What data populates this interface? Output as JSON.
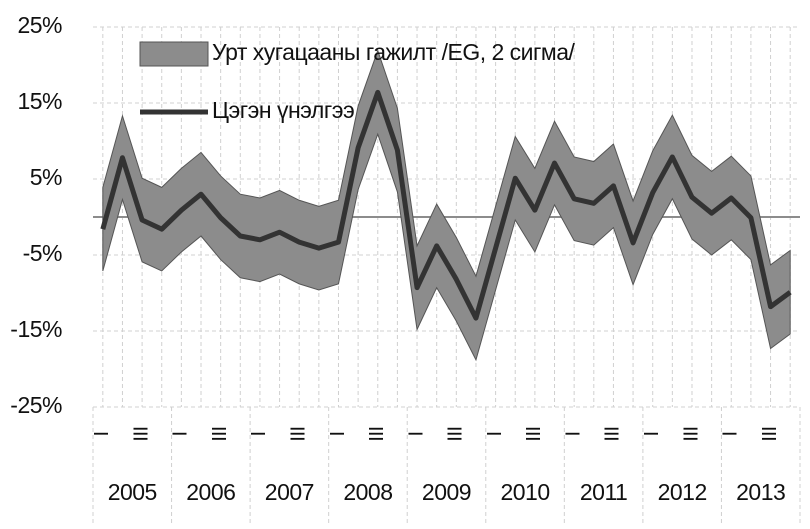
{
  "chart_data": {
    "type": "line",
    "categories": [
      "I",
      null,
      "III",
      null,
      "I",
      null,
      "III",
      null,
      "I",
      null,
      "III",
      null,
      "I",
      null,
      "III",
      null,
      "I",
      null,
      "III",
      null,
      "I",
      null,
      "III",
      null,
      "I",
      null,
      "III",
      null,
      "I",
      null,
      "III",
      null,
      "I",
      null,
      "III",
      null
    ],
    "groups": [
      "2005",
      "2006",
      "2007",
      "2008",
      "2009",
      "2010",
      "2011",
      "2012",
      "2013"
    ],
    "series": [
      {
        "name": "Урт хугацааны гажилт /EG, 2 сигма/",
        "type": "band",
        "color": "#8c8c8c",
        "upper": [
          3.9,
          13.3,
          5.1,
          3.9,
          6.4,
          8.5,
          5.4,
          3.0,
          2.5,
          3.5,
          2.2,
          1.4,
          2.2,
          14.6,
          21.9,
          14.3,
          -3.8,
          1.7,
          -2.7,
          -7.8,
          1.4,
          10.6,
          6.4,
          12.6,
          7.9,
          7.3,
          9.6,
          2.1,
          8.7,
          13.4,
          8.1,
          6.0,
          8.0,
          5.4,
          -6.3,
          -4.4
        ],
        "lower": [
          -7.1,
          2.3,
          -5.9,
          -7.1,
          -4.6,
          -2.5,
          -5.6,
          -8.0,
          -8.5,
          -7.5,
          -8.8,
          -9.6,
          -8.8,
          3.6,
          10.9,
          3.3,
          -14.8,
          -9.3,
          -13.7,
          -18.8,
          -9.6,
          -0.4,
          -4.6,
          1.6,
          -3.1,
          -3.7,
          -1.4,
          -8.9,
          -2.3,
          2.4,
          -2.9,
          -5.0,
          -3.0,
          -5.6,
          -17.3,
          -15.4
        ]
      },
      {
        "name": "Цэгэн үнэлгээ",
        "type": "line",
        "color": "#333333",
        "values": [
          -1.6,
          7.8,
          -0.4,
          -1.6,
          0.9,
          3.0,
          -0.1,
          -2.5,
          -3.0,
          -2.0,
          -3.3,
          -4.1,
          -3.3,
          9.1,
          16.4,
          8.8,
          -9.3,
          -3.8,
          -8.2,
          -13.3,
          -4.1,
          5.1,
          0.9,
          7.1,
          2.4,
          1.8,
          4.1,
          -3.4,
          3.2,
          7.9,
          2.6,
          0.5,
          2.5,
          -0.1,
          -11.8,
          -9.9
        ]
      }
    ],
    "ylim": [
      -25,
      25
    ],
    "yticks": [
      {
        "value": -25,
        "label": "-25%"
      },
      {
        "value": -15,
        "label": "-15%"
      },
      {
        "value": -5,
        "label": "-5%"
      },
      {
        "value": 5,
        "label": "5%"
      },
      {
        "value": 15,
        "label": "15%"
      },
      {
        "value": 25,
        "label": "25%"
      }
    ],
    "reference_line": 0,
    "grid": true
  }
}
